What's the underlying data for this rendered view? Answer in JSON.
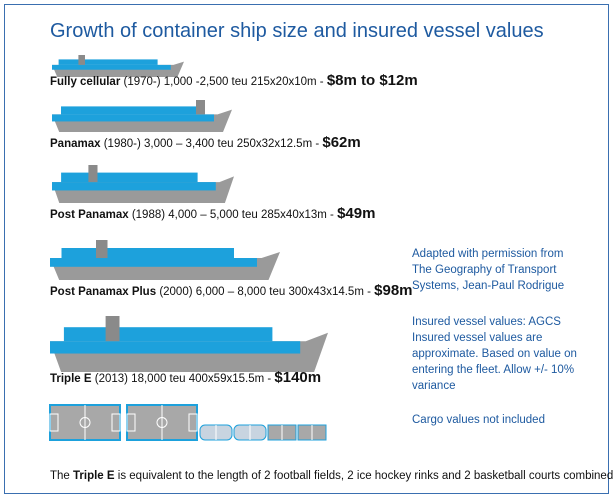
{
  "title": "Growth of container ship size and insured vessel values",
  "ships": [
    {
      "name": "Fully cellular",
      "detail": "(1970-) 1,000 -2,500 teu 215x20x10m -",
      "value": "$8m to $12m"
    },
    {
      "name": "Panamax",
      "detail": "(1980-) 3,000 – 3,400 teu 250x32x12.5m -",
      "value": "$62m"
    },
    {
      "name": "Post Panamax",
      "detail": "(1988) 4,000 – 5,000 teu 285x40x13m -",
      "value": "$49m"
    },
    {
      "name": "Post Panamax Plus",
      "detail": "(2000) 6,000 – 8,000 teu 300x43x14.5m -",
      "value": "$98m"
    },
    {
      "name": "Triple E",
      "detail": "(2013) 18,000 teu 400x59x15.5m -",
      "value": "$140m"
    }
  ],
  "notes": [
    "Adapted with permission from The Geography of Transport Systems, Jean-Paul Rodrigue",
    "Insured vessel values: AGCS Insured vessel values are approximate. Based on value on entering the fleet. Allow +/- 10% variance",
    "Cargo values not included"
  ],
  "footer": {
    "prefix": "The",
    "bold": "Triple E",
    "suffix": "is equivalent to the length of 2 football fields, 2 ice hockey rinks and 2 basketball courts combined"
  }
}
